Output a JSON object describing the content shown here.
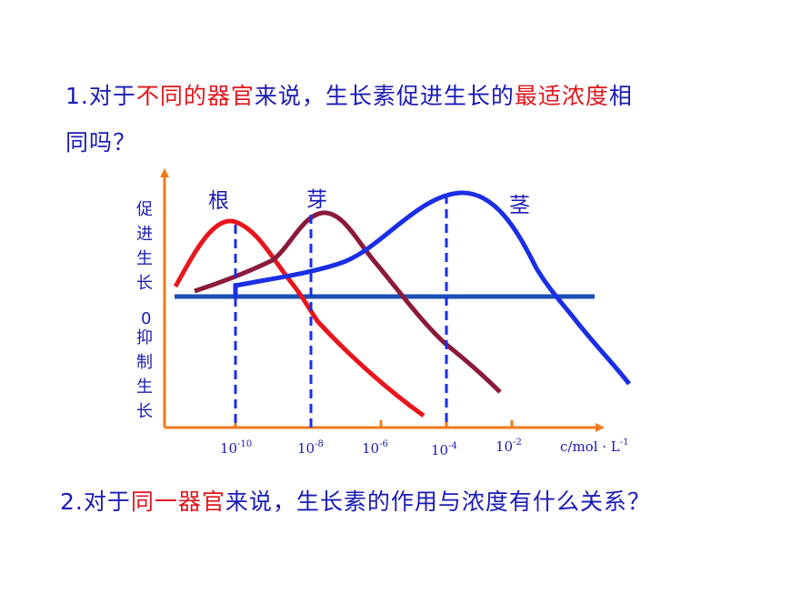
{
  "question1": {
    "line1": [
      {
        "text": "1.对于",
        "highlight": false
      },
      {
        "text": "不同的器官",
        "highlight": true
      },
      {
        "text": "来说，生长素促进生长的",
        "highlight": false
      },
      {
        "text": "最适浓度",
        "highlight": true
      },
      {
        "text": "相",
        "highlight": false
      }
    ],
    "line2": "同吗？"
  },
  "question2": [
    {
      "text": "2.对于",
      "highlight": false
    },
    {
      "text": "同一器官",
      "highlight": true
    },
    {
      "text": "来说，生长素的作用与浓度有什么关系？",
      "highlight": false
    }
  ],
  "colors": {
    "text": "#1a1ab4",
    "highlight": "#e0151b",
    "axis": "#f07a1a",
    "root": "#e8161c",
    "bud": "#8b1a3a",
    "stem": "#1a2ee6",
    "baseline": "#1a4fb4"
  },
  "chart": {
    "y_upper_label": [
      "促",
      "进",
      "生",
      "长"
    ],
    "zero_label": "0",
    "y_lower_label": [
      "抑",
      "制",
      "生",
      "长"
    ],
    "x_unit": {
      "base": "c/mol · L",
      "sup": "-1"
    },
    "x_ticks": [
      {
        "base": "10",
        "exp": "-10"
      },
      {
        "base": "10",
        "exp": "-8"
      },
      {
        "base": "10",
        "exp": "-6"
      },
      {
        "base": "10",
        "exp": "-4"
      },
      {
        "base": "10",
        "exp": "-2"
      }
    ],
    "curves": [
      {
        "name": "根",
        "optimum_exp": -10
      },
      {
        "name": "芽",
        "optimum_exp": -8
      },
      {
        "name": "茎",
        "optimum_exp": -4
      }
    ]
  }
}
